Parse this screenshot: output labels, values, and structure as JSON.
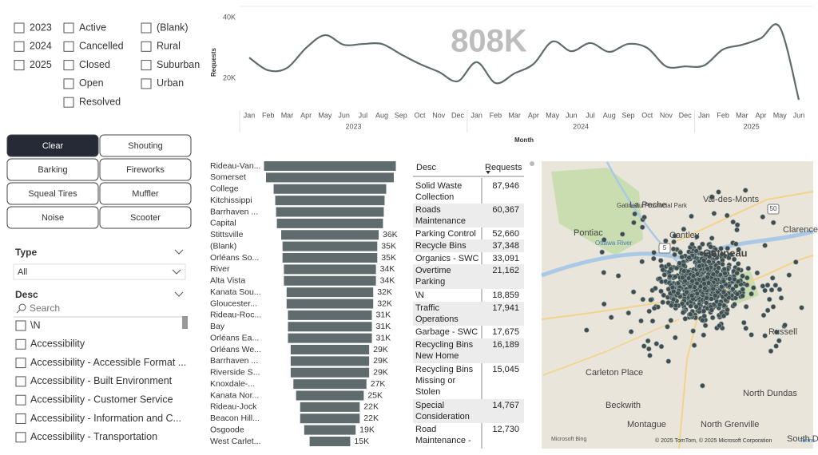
{
  "year_filter": {
    "options": [
      "2023",
      "2024",
      "2025"
    ]
  },
  "status_filter": {
    "options": [
      "Active",
      "Cancelled",
      "Closed",
      "Open",
      "Resolved"
    ]
  },
  "area_filter": {
    "options": [
      "(Blank)",
      "Rural",
      "Suburban",
      "Urban"
    ]
  },
  "buttons": [
    "Clear",
    "Shouting",
    "Barking",
    "Fireworks",
    "Squeal Tires",
    "Muffler",
    "Noise",
    "Scooter"
  ],
  "type_slicer": {
    "title": "Type",
    "value": "All"
  },
  "desc_slicer": {
    "title": "Desc",
    "search_placeholder": "Search",
    "items": [
      "\\N",
      "Accessibility",
      "Accessibility - Accessible Format ...",
      "Accessibility - Built Environment",
      "Accessibility - Customer Service",
      "Accessibility - Information and C...",
      "Accessibility - Transportation"
    ]
  },
  "chart_data": [
    {
      "type": "line",
      "annotation": "808K",
      "y_label": "Requests",
      "x_label": "Month",
      "categories": [
        "Jan",
        "Feb",
        "Mar",
        "Apr",
        "May",
        "Jun",
        "Jul",
        "Aug",
        "Sep",
        "Oct",
        "Nov",
        "Dec",
        "Jan",
        "Feb",
        "Mar",
        "Apr",
        "May",
        "Jun",
        "Jul",
        "Aug",
        "Sep",
        "Oct",
        "Nov",
        "Dec",
        "Jan",
        "Feb",
        "Mar",
        "Apr",
        "May",
        "Jun"
      ],
      "year_labels": [
        "2023",
        "2024",
        "2025"
      ],
      "values": [
        26800,
        22600,
        23400,
        30000,
        34200,
        31000,
        31300,
        31300,
        27900,
        24700,
        22100,
        19000,
        25300,
        18400,
        21600,
        24700,
        32100,
        28900,
        31600,
        28700,
        31300,
        30000,
        23900,
        23900,
        24200,
        29500,
        31000,
        33200,
        36800,
        12900
      ],
      "color": "#5f6b6d",
      "ylim": [
        10000,
        40000
      ],
      "yticks": [
        {
          "value": 20000,
          "label": "20K"
        },
        {
          "value": 40000,
          "label": "40K"
        }
      ],
      "grid": false
    },
    {
      "type": "funnel",
      "categories": [
        "Rideau-Van...",
        "Somerset",
        "College",
        "Kitchissippi",
        "Barrhaven ...",
        "Capital",
        "Stittsville",
        "(Blank)",
        "Orléans So...",
        "River",
        "Alta Vista",
        "Kanata Sou...",
        "Gloucester...",
        "Rideau-Roc...",
        "Bay",
        "Orléans Ea...",
        "Orléans We...",
        "Barrhaven ...",
        "Riverside S...",
        "Knoxdale-...",
        "Kanata Nor...",
        "Rideau-Jock",
        "Beacon Hill...",
        "Osgoode",
        "West Carlet..."
      ],
      "values": [
        48700,
        47200,
        41600,
        40400,
        39800,
        39200,
        36000,
        35000,
        35000,
        34000,
        34000,
        32000,
        32000,
        31000,
        31000,
        31000,
        29000,
        29000,
        29000,
        27000,
        25000,
        22000,
        22000,
        19000,
        15000
      ],
      "value_labels": [
        null,
        null,
        null,
        null,
        null,
        null,
        "36K",
        "35K",
        "35K",
        "34K",
        "34K",
        "32K",
        "32K",
        "31K",
        "31K",
        "31K",
        "29K",
        "29K",
        "29K",
        "27K",
        "25K",
        "22K",
        "22K",
        "19K",
        "15K"
      ],
      "color": "#5f6b6d"
    }
  ],
  "table": {
    "columns": [
      "Desc",
      "Requests"
    ],
    "rows": [
      [
        "Solid Waste Collection",
        "87,946"
      ],
      [
        "Roads Maintenance",
        "60,367"
      ],
      [
        "Parking Control",
        "52,660"
      ],
      [
        "Recycle Bins",
        "37,348"
      ],
      [
        "Organics - SWC",
        "33,091"
      ],
      [
        "Overtime Parking",
        "21,162"
      ],
      [
        "\\N",
        "18,859"
      ],
      [
        "Traffic Operations",
        "17,941"
      ],
      [
        "Garbage - SWC",
        "17,675"
      ],
      [
        "Recycling Bins New Home",
        "16,189"
      ],
      [
        "Recycling Bins Missing or Stolen",
        "15,045"
      ],
      [
        "Special Consideration",
        "14,767"
      ],
      [
        "Road Maintenance -",
        "12,730"
      ]
    ]
  },
  "map": {
    "labels": [
      "La Peche",
      "Val-des-Monts",
      "Gatineau Provincial Park",
      "Pontiac",
      "Ottawa River",
      "Cantley",
      "Clarence-Roc",
      "Gatineau",
      "Russell",
      "Carleton Place",
      "North Dundas",
      "Beckwith",
      "Montague",
      "North Grenville",
      "South Dunda",
      "50",
      "5"
    ],
    "provider": "Microsoft Bing",
    "attribution": "© 2025 TomTom, © 2025 Microsoft Corporation",
    "terms": "Terms"
  }
}
